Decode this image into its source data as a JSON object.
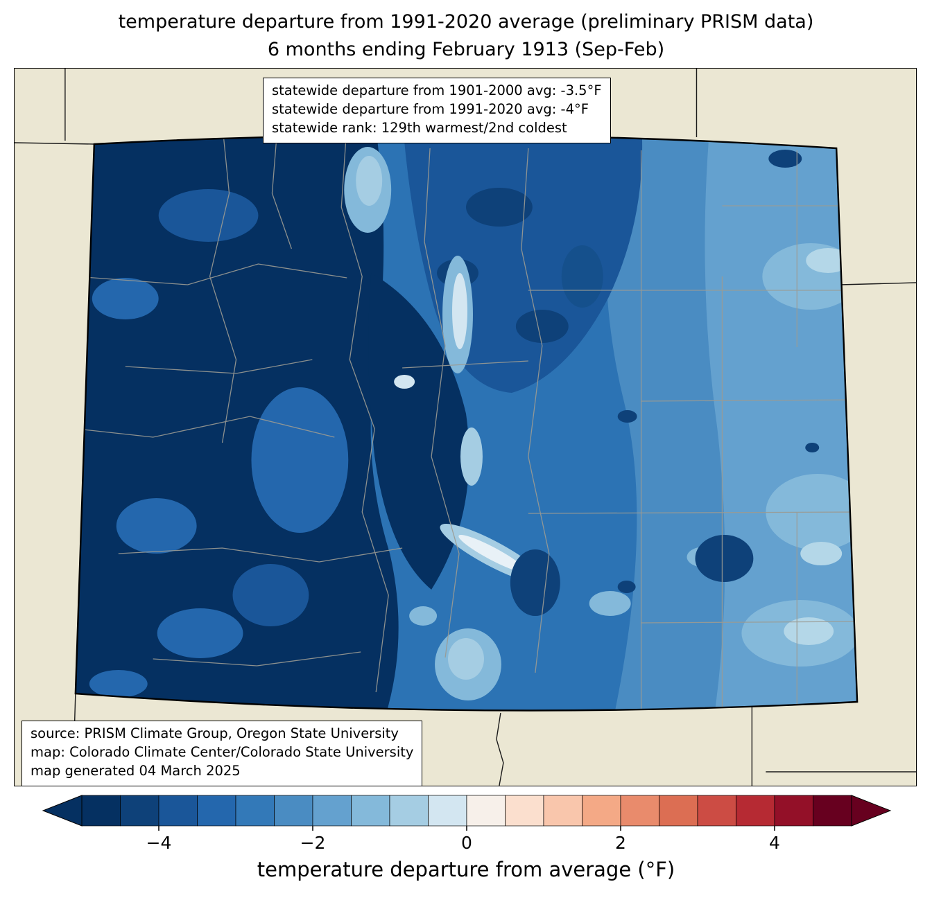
{
  "title": {
    "line1": "temperature departure from 1991-2020 average (preliminary PRISM data)",
    "line2": "6 months ending February 1913 (Sep-Feb)"
  },
  "stats_box": {
    "lines": [
      "statewide departure from 1901-2000 avg: -3.5°F",
      "statewide departure from 1991-2020 avg: -4°F",
      "statewide rank: 129th warmest/2nd coldest"
    ]
  },
  "source_box": {
    "lines": [
      "source: PRISM Climate Group, Oregon State University",
      "map: Colorado Climate Center/Colorado State University",
      "map generated 04 March 2025"
    ]
  },
  "map": {
    "region": "Colorado",
    "land_color": "#ebe7d3",
    "state_border_color": "#000000",
    "county_line_color": "#9b9b93"
  },
  "colorbar": {
    "label": "temperature departure from average (°F)",
    "range": [
      -5,
      5
    ],
    "tick_values": [
      -4,
      -2,
      0,
      2,
      4
    ],
    "tick_labels": [
      "−4",
      "−2",
      "0",
      "2",
      "4"
    ],
    "left_arrow_color": "#053061",
    "right_arrow_color": "#67001f",
    "segment_colors": [
      "#053061",
      "#0e4179",
      "#1a5699",
      "#2467ad",
      "#3379b8",
      "#4a8cc2",
      "#64a1cf",
      "#84b9da",
      "#a5cde3",
      "#d3e6f1",
      "#f7f0ea",
      "#fbdfce",
      "#f9c6ac",
      "#f4a986",
      "#e98b6c",
      "#dc6e53",
      "#cc4c44",
      "#b62a33",
      "#931028",
      "#67001f"
    ]
  }
}
